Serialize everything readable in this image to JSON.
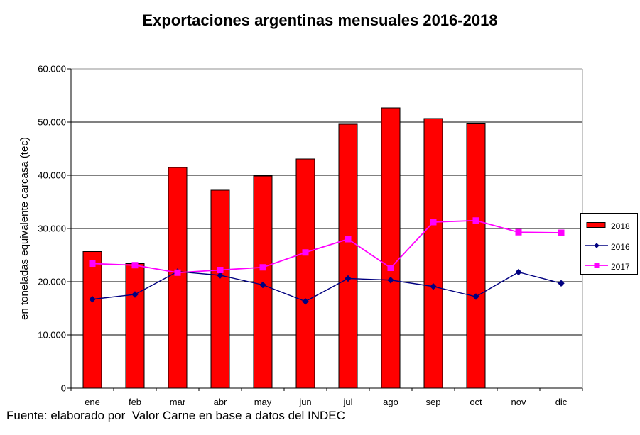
{
  "page": {
    "footer": "Fuente: elaborado por  Valor Carne en base a datos del INDEC"
  },
  "chart_data": {
    "type": "bar",
    "subtype": "bar-and-line-combo",
    "title": "Exportaciones argentinas mensuales 2016-2018",
    "xlabel": "",
    "ylabel": "en toneladas equivalente carcasa (tec)",
    "categories": [
      "ene",
      "feb",
      "mar",
      "abr",
      "may",
      "jun",
      "jul",
      "ago",
      "sep",
      "oct",
      "nov",
      "dic"
    ],
    "y_axis": {
      "min": 0,
      "max": 60000,
      "tick_step": 10000,
      "tick_values": [
        0,
        10000,
        20000,
        30000,
        40000,
        50000,
        60000
      ],
      "tick_labels": [
        "0",
        "10.000",
        "20.000",
        "30.000",
        "40.000",
        "50.000",
        "60.000"
      ]
    },
    "grid": true,
    "legend_position": "right",
    "series": [
      {
        "name": "2018",
        "type": "bar",
        "color": "#ff0000",
        "border_color": "#000000",
        "values": [
          25700,
          23400,
          41500,
          37200,
          39900,
          43100,
          49600,
          52700,
          50700,
          49700,
          null,
          null
        ]
      },
      {
        "name": "2016",
        "type": "line",
        "marker": "diamond",
        "color": "#000080",
        "values": [
          16700,
          17600,
          21900,
          21200,
          19400,
          16300,
          20600,
          20300,
          19100,
          17200,
          21800,
          19700
        ]
      },
      {
        "name": "2017",
        "type": "line",
        "marker": "square",
        "color": "#ff00ff",
        "values": [
          23400,
          23100,
          21700,
          22200,
          22700,
          25500,
          28000,
          22600,
          31200,
          31500,
          29300,
          29200
        ]
      }
    ],
    "colors": {
      "gridline": "#000000",
      "plot_border": "#909090",
      "axis": "#000000",
      "text": "#000000",
      "background": "#ffffff"
    }
  }
}
